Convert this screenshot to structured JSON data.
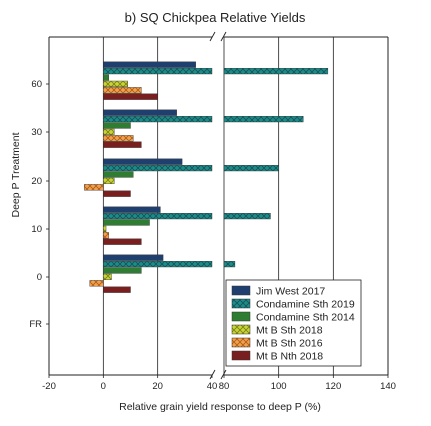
{
  "chart_data": {
    "type": "bar",
    "orientation": "horizontal",
    "title": "b) SQ Chickpea Relative Yields",
    "xlabel": "Relative grain yield response to deep P (%)",
    "ylabel": "Deep P Treatment",
    "categories": [
      "60",
      "30",
      "20",
      "10",
      "0",
      "FR"
    ],
    "x_axis_break": {
      "left_range": [
        -20,
        40
      ],
      "right_range": [
        80,
        140
      ]
    },
    "x_ticks": [
      "-20",
      "0",
      "20",
      "40",
      "80",
      "100",
      "120",
      "140"
    ],
    "gridlines_at": [
      0,
      20,
      80,
      100,
      120
    ],
    "legend_position": "bottom-right",
    "series": [
      {
        "name": "Jim West 2017",
        "color": "#1f3f6e",
        "hatch": "none",
        "values": [
          34,
          27,
          29,
          21,
          22,
          null
        ]
      },
      {
        "name": "Condamine Sth 2019",
        "color": "#1f8a8a",
        "hatch": "cross",
        "values": [
          118,
          109,
          100,
          97,
          84,
          null
        ]
      },
      {
        "name": "Condamine Sth 2014",
        "color": "#2e7d32",
        "hatch": "none",
        "values": [
          2,
          10,
          11,
          17,
          14,
          null
        ]
      },
      {
        "name": "Mt B Sth 2018",
        "color": "#b5c21a",
        "hatch": "cross",
        "values": [
          9,
          4,
          4,
          1,
          3,
          null
        ]
      },
      {
        "name": "Mt B Sth 2016",
        "color": "#e8872a",
        "hatch": "cross",
        "values": [
          14,
          11,
          -7,
          2,
          -5,
          null
        ]
      },
      {
        "name": "Mt B Nth 2018",
        "color": "#7a1f1f",
        "hatch": "none",
        "values": [
          20,
          14,
          10,
          14,
          10,
          null
        ]
      }
    ]
  }
}
